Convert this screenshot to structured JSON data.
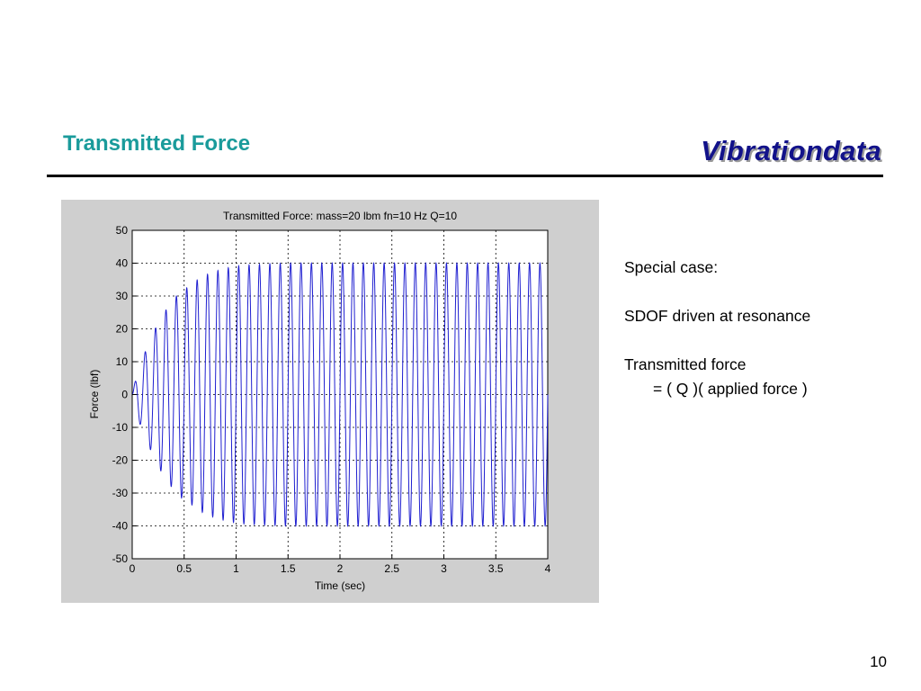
{
  "slide": {
    "title": "Transmitted Force",
    "brand": "Vibrationdata",
    "page_number": "10"
  },
  "notes": {
    "line1": "Special case:",
    "line2": "SDOF driven at resonance",
    "line3": "Transmitted force",
    "line4": "= ( Q )( applied force )"
  },
  "chart_data": {
    "type": "line",
    "title": "Transmitted Force: mass=20 lbm  fn=10 Hz Q=10",
    "xlabel": "Time (sec)",
    "ylabel": "Force (lbf)",
    "xlim": [
      0,
      4
    ],
    "ylim": [
      -50,
      50
    ],
    "xticks": [
      0,
      0.5,
      1,
      1.5,
      2,
      2.5,
      3,
      3.5,
      4
    ],
    "xtick_labels": [
      "0",
      "0.5",
      "1",
      "1.5",
      "2",
      "2.5",
      "3",
      "3.5",
      "4"
    ],
    "yticks": [
      -50,
      -40,
      -30,
      -20,
      -10,
      0,
      10,
      20,
      30,
      40,
      50
    ],
    "ytick_labels": [
      "-50",
      "-40",
      "-30",
      "-20",
      "-10",
      "0",
      "10",
      "20",
      "30",
      "40",
      "50"
    ],
    "grid": true,
    "line_color": "#1f1fd0",
    "series": [
      {
        "frequency_hz": 10,
        "steady_state_amplitude": 40,
        "envelope": {
          "t": [
            0,
            0.05,
            0.15,
            0.25,
            0.35,
            0.45,
            0.55,
            0.65,
            0.75,
            0.85,
            0.95,
            1.05,
            1.25,
            1.5,
            2,
            4
          ],
          "amplitude": [
            0,
            7,
            15,
            22,
            27,
            31,
            33,
            35.5,
            37,
            38,
            38.8,
            39.3,
            39.7,
            40,
            40,
            40
          ]
        }
      }
    ]
  }
}
